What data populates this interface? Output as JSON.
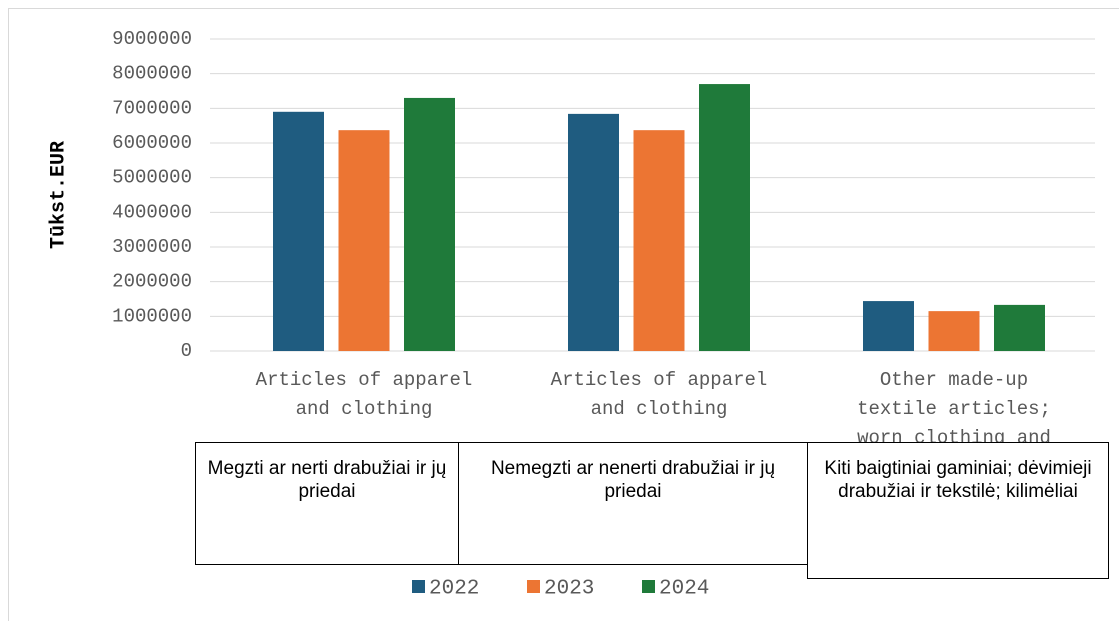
{
  "chart_data": {
    "type": "bar",
    "y_axis_label": "Tūkst.EUR",
    "categories": [
      "Articles of apparel and clothing",
      "Articles of apparel and clothing",
      "Other made-up textile articles; worn clothing and"
    ],
    "annotations": [
      "Megzti ar nerti drabužiai ir jų priedai",
      "Nemegzti ar nenerti drabužiai ir jų priedai",
      "Kiti baigtiniai gaminiai; dėvimieji drabužiai ir tekstilė; kilimėliai"
    ],
    "series": [
      {
        "name": "2022",
        "color": "#1f5c80",
        "values": [
          6900000,
          6840000,
          1440000
        ]
      },
      {
        "name": "2023",
        "color": "#ec7533",
        "values": [
          6370000,
          6370000,
          1150000
        ]
      },
      {
        "name": "2024",
        "color": "#1f7a3a",
        "values": [
          7300000,
          7700000,
          1330000
        ]
      }
    ],
    "ylim": [
      0,
      9000000
    ],
    "yticks": [
      0,
      1000000,
      2000000,
      3000000,
      4000000,
      5000000,
      6000000,
      7000000,
      8000000,
      9000000
    ],
    "grid": true,
    "legend": "bottom"
  }
}
